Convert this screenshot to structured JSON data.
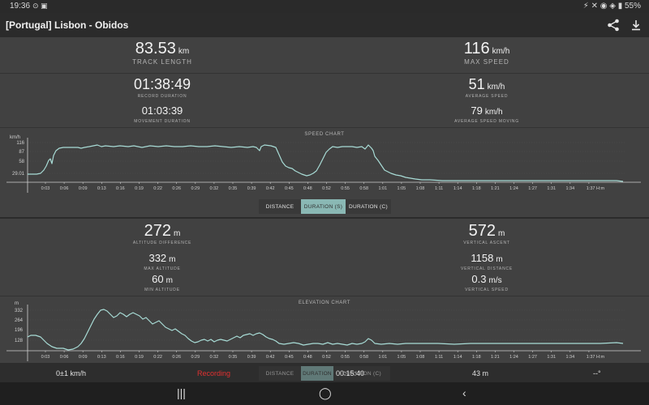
{
  "status": {
    "time": "19:36",
    "battery": "55%"
  },
  "appbar": {
    "title": "[Portugal] Lisbon - Obidos"
  },
  "speed_stats": {
    "track_length": {
      "value": "83.53",
      "unit": "km",
      "label": "TRACK LENGTH"
    },
    "max_speed": {
      "value": "116",
      "unit": "km/h",
      "label": "MAX SPEED"
    },
    "record_duration": {
      "value": "01:38:49",
      "label": "RECORD DURATION"
    },
    "movement_duration": {
      "value": "01:03:39",
      "label": "MOVEMENT DURATION"
    },
    "average_speed": {
      "value": "51",
      "unit": "km/h",
      "label": "AVERAGE SPEED"
    },
    "average_speed_moving": {
      "value": "79",
      "unit": "km/h",
      "label": "AVERAGE SPEED MOVING"
    }
  },
  "speed_chart": {
    "title": "SPEED CHART",
    "y_unit": "km/h",
    "y_ticks": [
      "116",
      "87",
      "58",
      "29.01"
    ],
    "x_ticks": [
      "0:03",
      "0:06",
      "0:09",
      "0:13",
      "0:16",
      "0:19",
      "0:22",
      "0:26",
      "0:29",
      "0:32",
      "0:35",
      "0:39",
      "0:42",
      "0:45",
      "0:48",
      "0:52",
      "0:55",
      "0:58",
      "1:01",
      "1:05",
      "1:08",
      "1:11",
      "1:14",
      "1:18",
      "1:21",
      "1:24",
      "1:27",
      "1:31",
      "1:34",
      "1:37 H:m"
    ]
  },
  "toggle1": {
    "distance": "DISTANCE",
    "duration_s": "DURATION (S)",
    "duration_c": "DURATION (C)"
  },
  "elev_stats": {
    "altitude_difference": {
      "value": "272",
      "unit": "m",
      "label": "ALTITUDE DIFFERENCE"
    },
    "vertical_ascent": {
      "value": "572",
      "unit": "m",
      "label": "VERTICAL ASCENT"
    },
    "max_altitude": {
      "value": "332",
      "unit": "m",
      "label": "MAX ALTITUDE"
    },
    "vertical_distance": {
      "value": "1158",
      "unit": "m",
      "label": "VERTICAL DISTANCE"
    },
    "min_altitude": {
      "value": "60",
      "unit": "m",
      "label": "MIN ALTITUDE"
    },
    "vertical_speed": {
      "value": "0.3",
      "unit": "m/s",
      "label": "VERTICAL SPEED"
    }
  },
  "elevation_chart": {
    "title": "ELEVATION CHART",
    "y_unit": "m",
    "y_ticks": [
      "332",
      "264",
      "196",
      "128"
    ],
    "x_ticks": [
      "0:03",
      "0:06",
      "0:09",
      "0:13",
      "0:16",
      "0:19",
      "0:22",
      "0:26",
      "0:29",
      "0:32",
      "0:35",
      "0:39",
      "0:42",
      "0:45",
      "0:48",
      "0:52",
      "0:55",
      "0:58",
      "1:01",
      "1:05",
      "1:08",
      "1:11",
      "1:14",
      "1:18",
      "1:21",
      "1:24",
      "1:27",
      "1:31",
      "1:34",
      "1:37 H:m"
    ]
  },
  "toggle2": {
    "distance": "DISTANCE",
    "duration": "DURATION",
    "duration_c": "DURATION (C)"
  },
  "bottom": {
    "speed": "0±1 km/h",
    "recording": "Recording",
    "timer": "00:15:40",
    "altitude": "43 m",
    "heading": "--°"
  },
  "colors": {
    "line": "#a8dcd6",
    "accent": "#8ab8b4",
    "recording": "#e03030"
  }
}
